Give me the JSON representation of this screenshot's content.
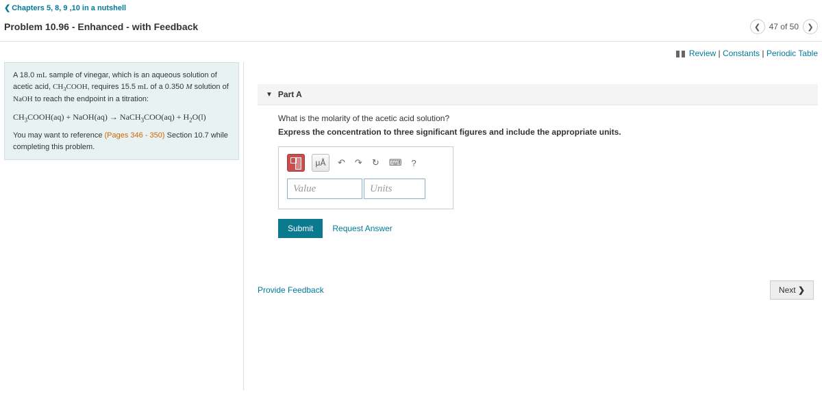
{
  "breadcrumb": {
    "label": "Chapters 5, 8, 9 ,10 in a nutshell"
  },
  "title": "Problem 10.96 - Enhanced - with Feedback",
  "nav": {
    "position": "47 of 50"
  },
  "topLinks": {
    "review": "Review",
    "constants": "Constants",
    "periodic": "Periodic Table"
  },
  "problem": {
    "intro_pre": "A 18.0 ",
    "intro_ml": "mL",
    "intro_mid1": " sample of vinegar, which is an aqueous solution of acetic acid, ",
    "intro_mid2": ", requires 15.5 ",
    "intro_mid3": " of a 0.350 ",
    "intro_M": "M",
    "intro_mid4": " solution of ",
    "intro_end": " to reach the endpoint in a titration:",
    "ref_pre": "You may want to reference ",
    "ref_link": "(Pages 346 - 350)",
    "ref_post": " Section 10.7 while completing this problem."
  },
  "part": {
    "label": "Part A",
    "question": "What is the molarity of the acetic acid solution?",
    "instruction": "Express the concentration to three significant figures and include the appropriate units.",
    "value_ph": "Value",
    "units_ph": "Units",
    "submit": "Submit",
    "request": "Request Answer",
    "mu": "μÅ",
    "help": "?"
  },
  "feedback": {
    "provide": "Provide Feedback",
    "next": "Next"
  }
}
